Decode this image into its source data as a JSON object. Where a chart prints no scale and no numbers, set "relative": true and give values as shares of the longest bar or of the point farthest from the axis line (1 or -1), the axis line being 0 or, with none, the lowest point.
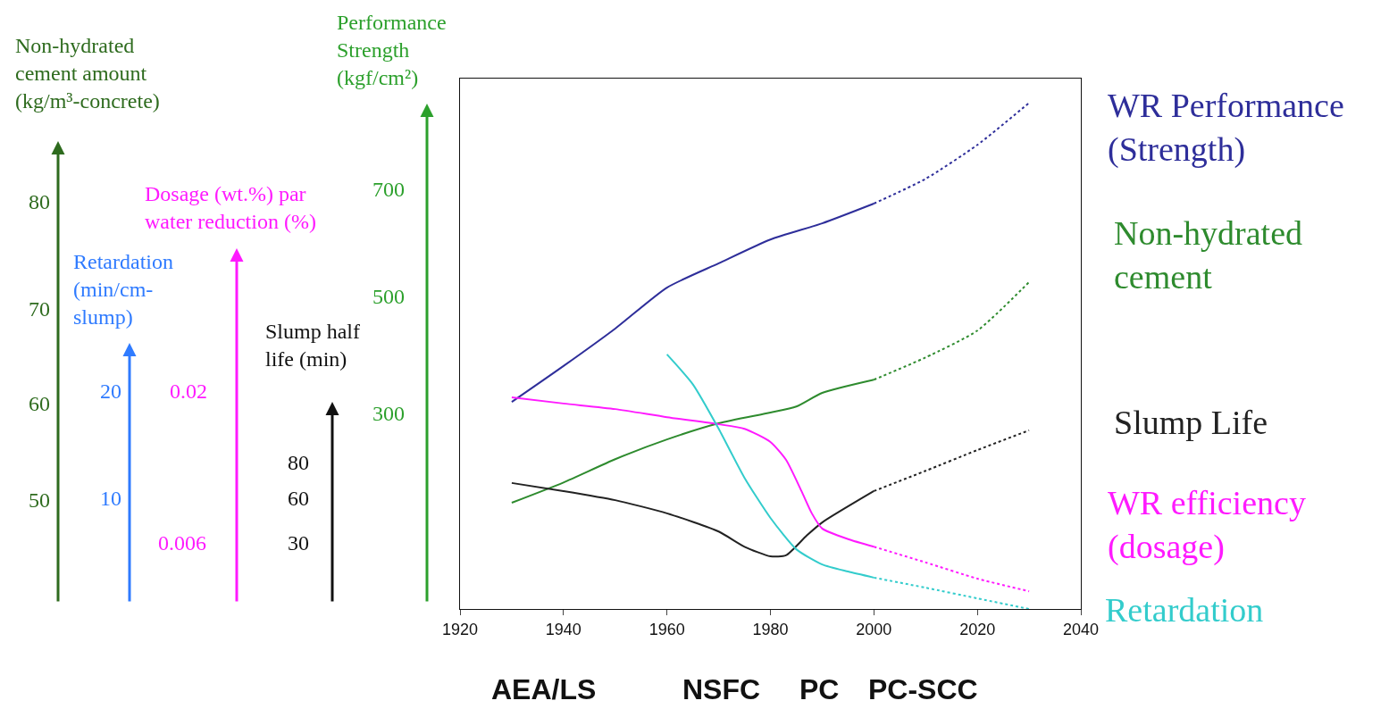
{
  "chart_data": {
    "type": "line",
    "relative": true,
    "xlim": [
      1920,
      2040
    ],
    "xticks": [
      1920,
      1940,
      1960,
      1980,
      2000,
      2020,
      2040
    ],
    "legend": false,
    "marker": "none",
    "series": [
      {
        "name": "WR Performance\n(Strength)",
        "color": "#2e2e9a",
        "line_style": "solid",
        "x": [
          1930,
          1940,
          1950,
          1960,
          1970,
          1980,
          1990,
          2000
        ],
        "values": [
          0.409,
          0.48,
          0.554,
          0.635,
          0.683,
          0.73,
          0.762,
          0.801
        ]
      },
      {
        "color": "#2e2e9a",
        "line_style": "dotted",
        "x": [
          2000,
          2010,
          2020,
          2030
        ],
        "values": [
          0.801,
          0.85,
          0.917,
          1.0
        ]
      },
      {
        "name": "Non-hydrated\ncement",
        "color": "#2e8b2e",
        "line_style": "solid",
        "x": [
          1930,
          1940,
          1950,
          1960,
          1970,
          1980,
          1985,
          1990,
          2000
        ],
        "values": [
          0.21,
          0.25,
          0.296,
          0.335,
          0.367,
          0.388,
          0.4,
          0.427,
          0.453
        ]
      },
      {
        "color": "#2e8b2e",
        "line_style": "dotted",
        "x": [
          2000,
          2010,
          2020,
          2030
        ],
        "values": [
          0.453,
          0.497,
          0.55,
          0.646
        ]
      },
      {
        "name": "Slump Life",
        "color": "#222222",
        "line_style": "solid",
        "x": [
          1930,
          1940,
          1950,
          1960,
          1970,
          1975,
          1980,
          1983,
          1987,
          1990,
          2000
        ],
        "values": [
          0.249,
          0.233,
          0.215,
          0.189,
          0.153,
          0.123,
          0.104,
          0.106,
          0.145,
          0.171,
          0.233
        ]
      },
      {
        "color": "#222222",
        "line_style": "dotted",
        "x": [
          2000,
          2010,
          2020,
          2030
        ],
        "values": [
          0.233,
          0.273,
          0.314,
          0.353
        ]
      },
      {
        "name": "WR efficiency\n(dosage)",
        "color": "#ff1aff",
        "line_style": "solid",
        "x": [
          1930,
          1940,
          1950,
          1960,
          1970,
          1975,
          1980,
          1983,
          1986,
          1988,
          1990,
          1995,
          2000
        ],
        "values": [
          0.418,
          0.406,
          0.395,
          0.379,
          0.365,
          0.356,
          0.33,
          0.295,
          0.233,
          0.189,
          0.159,
          0.138,
          0.123
        ]
      },
      {
        "color": "#ff1aff",
        "line_style": "dotted",
        "x": [
          2000,
          2010,
          2020,
          2030
        ],
        "values": [
          0.123,
          0.092,
          0.06,
          0.035
        ]
      },
      {
        "name": "Retardation",
        "color": "#33cccc",
        "line_style": "solid",
        "x": [
          1960,
          1965,
          1970,
          1975,
          1980,
          1985,
          1990,
          1995,
          2000
        ],
        "values": [
          0.503,
          0.444,
          0.356,
          0.259,
          0.18,
          0.118,
          0.088,
          0.074,
          0.062
        ]
      },
      {
        "color": "#33cccc",
        "line_style": "dotted",
        "x": [
          2000,
          2010,
          2020,
          2030
        ],
        "values": [
          0.062,
          0.042,
          0.021,
          0.0
        ]
      }
    ],
    "annotations": [
      "Non-hydrated\ncement amount\n(kg/m³-concrete)",
      "80",
      "70",
      "60",
      "50",
      "Retardation\n(min/cm-\nslump)",
      "20",
      "10",
      "Dosage (wt.%) par\nwater reduction (%)",
      "0.02",
      "0.006",
      "Slump half\nlife (min)",
      "80",
      "60",
      "30",
      "Performance\nStrength\n(kgf/cm²)",
      "700",
      "500",
      "300",
      "AEA/LS",
      "NSFC",
      "PC",
      "PC-SCC"
    ]
  }
}
